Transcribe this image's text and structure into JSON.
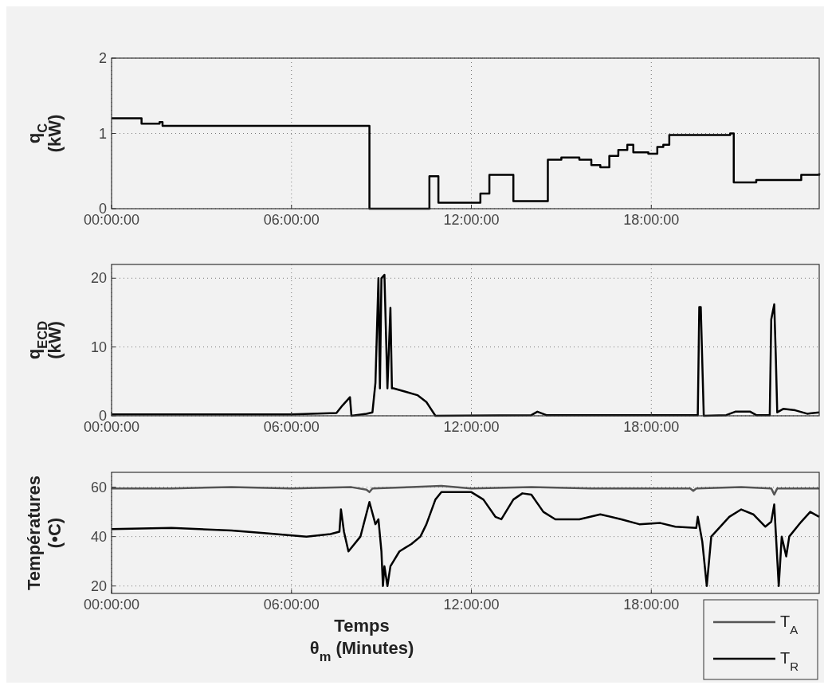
{
  "chart_data": [
    {
      "type": "step",
      "ylabel": "q$_{C}$\n(kW)",
      "xlim": [
        0,
        23.6
      ],
      "ylim": [
        0,
        2
      ],
      "yticks": [
        0,
        1,
        2
      ],
      "xticks": [
        {
          "value": 0,
          "label": "00:00:00"
        },
        {
          "value": 6,
          "label": "06:00:00"
        },
        {
          "value": 12,
          "label": "12:00:00"
        },
        {
          "value": 18,
          "label": "18:00:00"
        }
      ],
      "grid": true,
      "legend": false,
      "line_style": "solid",
      "series": [
        {
          "color": "#000000",
          "x": [
            0,
            0.9,
            1.0,
            1.5,
            1.6,
            1.7,
            8.47,
            8.6,
            10.5,
            10.6,
            10.8,
            10.9,
            12.17,
            12.3,
            12.6,
            13.3,
            13.4,
            14.46,
            14.55,
            15.0,
            15.6,
            16.0,
            16.3,
            16.6,
            16.9,
            17.2,
            17.4,
            17.9,
            18.2,
            18.4,
            18.6,
            20.63,
            20.75,
            21.3,
            21.5,
            22.7,
            23.0,
            23.6
          ],
          "values": [
            1.2,
            1.2,
            1.13,
            1.13,
            1.15,
            1.1,
            1.1,
            0,
            0,
            0.43,
            0.43,
            0.08,
            0.08,
            0.2,
            0.45,
            0.45,
            0.1,
            0.1,
            0.65,
            0.68,
            0.65,
            0.58,
            0.55,
            0.7,
            0.78,
            0.85,
            0.75,
            0.73,
            0.82,
            0.85,
            0.98,
            1.0,
            0.35,
            0.35,
            0.38,
            0.38,
            0.45,
            0.47
          ]
        }
      ]
    },
    {
      "type": "line",
      "ylabel": "q$_{ECD}$\n(kW)",
      "xlim": [
        0,
        23.6
      ],
      "ylim": [
        0,
        22
      ],
      "yticks": [
        0,
        10,
        20
      ],
      "xticks": [
        {
          "value": 0,
          "label": "00:00:00"
        },
        {
          "value": 6,
          "label": "06:00:00"
        },
        {
          "value": 12,
          "label": "12:00:00"
        },
        {
          "value": 18,
          "label": "18:00:00"
        }
      ],
      "grid": true,
      "legend": false,
      "line_style": "solid",
      "series": [
        {
          "color": "#000000",
          "x": [
            0,
            6,
            7.5,
            7.7,
            7.95,
            8.0,
            8.5,
            8.7,
            8.8,
            8.9,
            8.95,
            9.0,
            9.1,
            9.2,
            9.3,
            9.35,
            9.4,
            9.8,
            10.2,
            10.5,
            10.8,
            14.0,
            14.2,
            14.5,
            19.55,
            19.6,
            19.65,
            19.75,
            20.5,
            20.8,
            21.3,
            21.5,
            21.95,
            22.0,
            22.1,
            22.15,
            22.2,
            22.4,
            22.8,
            23.2,
            23.6
          ],
          "values": [
            0.2,
            0.2,
            0.4,
            1.5,
            2.7,
            0,
            0.3,
            0.5,
            4.8,
            20,
            4,
            20,
            20.5,
            4,
            15.7,
            4,
            4,
            3.5,
            3,
            2,
            0,
            0.1,
            0.6,
            0.1,
            0.1,
            15.8,
            15.8,
            0,
            0.1,
            0.6,
            0.6,
            0.1,
            0.1,
            14,
            16.2,
            9,
            0.5,
            1.0,
            0.8,
            0.3,
            0.5
          ]
        }
      ]
    },
    {
      "type": "line",
      "ylabel": "Températures\n(•C)",
      "xlabel": "Temps\nθ$_{m}$ (Minutes)",
      "xlim": [
        0,
        23.6
      ],
      "ylim": [
        17,
        66
      ],
      "yticks": [
        20,
        40,
        60
      ],
      "xticks": [
        {
          "value": 0,
          "label": "00:00:00"
        },
        {
          "value": 6,
          "label": "06:00:00"
        },
        {
          "value": 12,
          "label": "12:00:00"
        },
        {
          "value": 18,
          "label": "18:00:00"
        }
      ],
      "grid": true,
      "legend": "bottom right",
      "line_style": "solid",
      "series": [
        {
          "name": "T$_{A}$",
          "color": "#555555",
          "x": [
            0,
            2,
            4,
            6,
            8,
            8.5,
            8.6,
            8.7,
            10,
            11,
            12,
            14,
            16,
            18,
            19.3,
            19.4,
            19.5,
            21,
            22.0,
            22.1,
            22.2,
            23,
            23.6
          ],
          "values": [
            59.5,
            59.5,
            60,
            59.5,
            60,
            59,
            58,
            59.5,
            60,
            60.5,
            59.5,
            60,
            59.5,
            59.5,
            59.5,
            58.5,
            59.5,
            60,
            59.5,
            57,
            59.5,
            59.5,
            59.5
          ]
        },
        {
          "name": "T$_{R}$",
          "color": "#000000",
          "x": [
            0,
            2,
            4,
            5,
            6.5,
            7.3,
            7.6,
            7.65,
            7.75,
            7.9,
            8.3,
            8.6,
            8.8,
            8.9,
            9.0,
            9.05,
            9.1,
            9.2,
            9.3,
            9.6,
            10.0,
            10.3,
            10.5,
            10.8,
            11.0,
            12.0,
            12.4,
            12.8,
            13.0,
            13.4,
            13.7,
            14.0,
            14.4,
            14.8,
            15.6,
            16.3,
            17.0,
            17.6,
            18.3,
            18.8,
            19.5,
            19.55,
            19.7,
            19.85,
            20.0,
            20.6,
            21.0,
            21.4,
            21.8,
            22.0,
            22.1,
            22.25,
            22.35,
            22.5,
            22.6,
            23.0,
            23.3,
            23.6
          ],
          "values": [
            43,
            43.5,
            42.5,
            41.5,
            40,
            41,
            42,
            51,
            42,
            34,
            40,
            54,
            45,
            47,
            34,
            20,
            28,
            20,
            28,
            34,
            37,
            40,
            45,
            55,
            58,
            58,
            55,
            48,
            47,
            55,
            57.5,
            57,
            50,
            47,
            47,
            49,
            47,
            45,
            45.5,
            44,
            43.5,
            48,
            38,
            20,
            40,
            48,
            51,
            49,
            44,
            46,
            53,
            20,
            40,
            32,
            40,
            46,
            50,
            48
          ]
        }
      ]
    }
  ]
}
